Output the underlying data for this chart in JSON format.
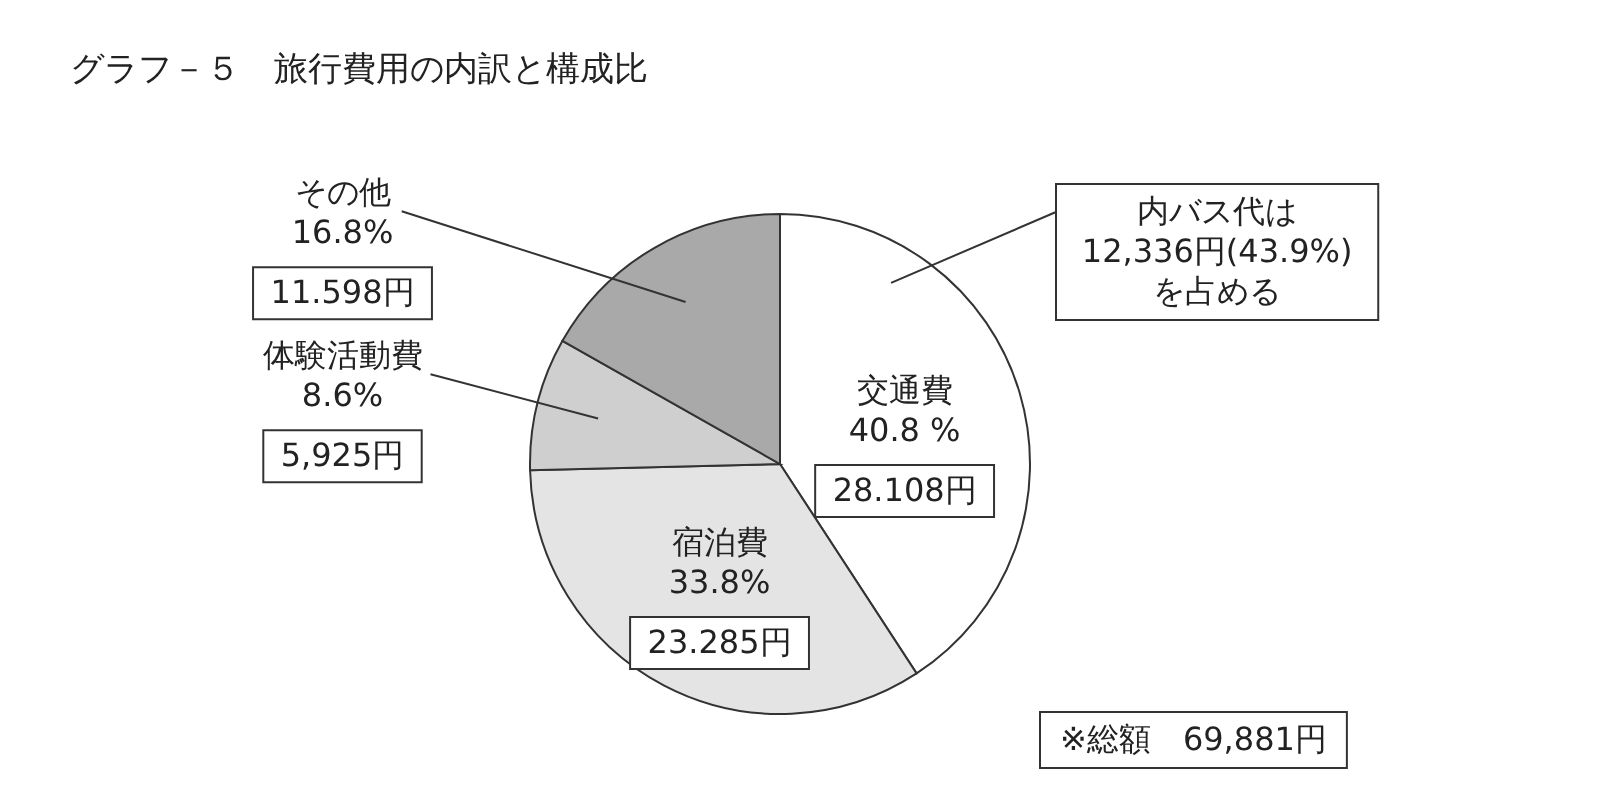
{
  "chart_data": {
    "type": "pie",
    "title": "グラフ－５　旅行費用の内訳と構成比",
    "categories": [
      "交通費",
      "宿泊費",
      "体験活動費",
      "その他"
    ],
    "values": [
      40.8,
      33.8,
      8.6,
      16.8
    ],
    "colors": [
      "#ffffff",
      "#e4e4e4",
      "#cfcfcf",
      "#a9a9a9"
    ],
    "value_labels": [
      "40.8 %",
      "33.8%",
      "8.6%",
      "16.8%"
    ],
    "annotations": [
      "内バス代は\n12,336円(43.9%)\nを占める",
      "※総額　69,881円",
      {
        "text": "28.108円",
        "x": "交通費"
      },
      {
        "text": "23.285円",
        "x": "宿泊費"
      },
      {
        "text": "5,925円",
        "x": "体験活動費"
      },
      {
        "text": "11.598円",
        "x": "その他"
      }
    ]
  }
}
